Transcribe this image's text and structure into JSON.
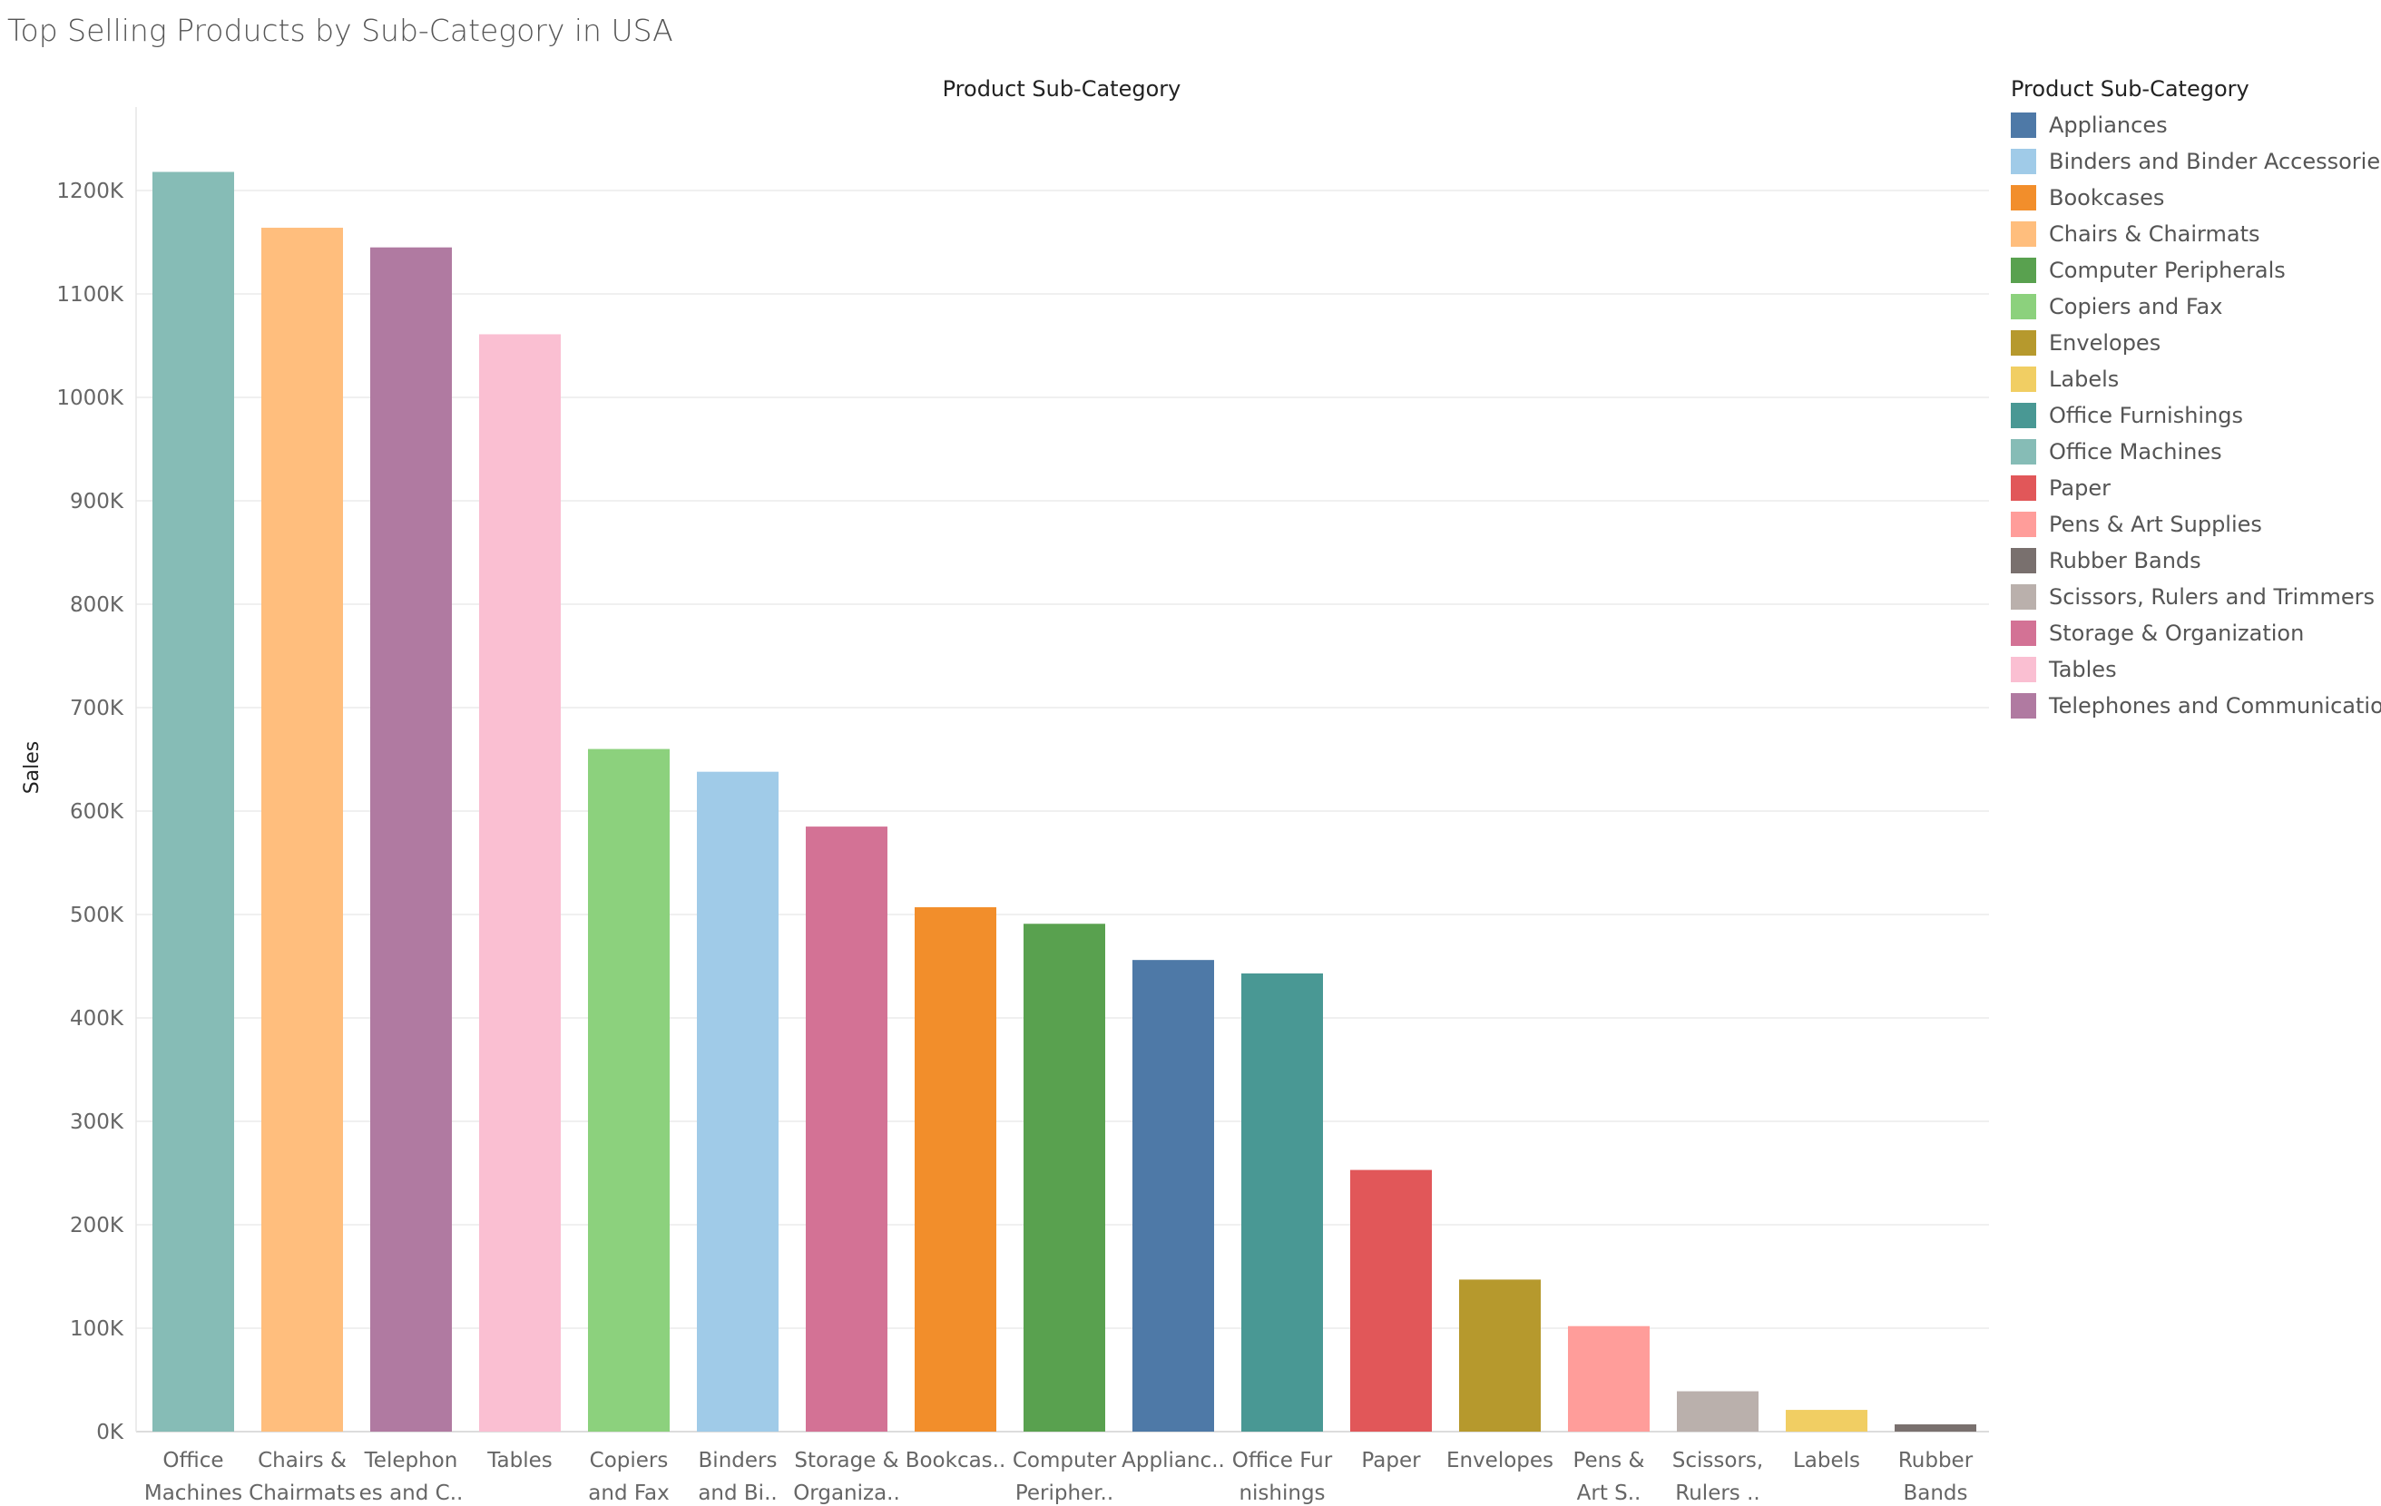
{
  "title": "Top Selling Products by Sub-Category in USA",
  "chart_data": {
    "type": "bar",
    "column_header": "Product Sub-Category",
    "ylabel": "Sales",
    "ylim": [
      0,
      1250000
    ],
    "yticks": [
      {
        "value": 0,
        "label": "0K"
      },
      {
        "value": 100000,
        "label": "100K"
      },
      {
        "value": 200000,
        "label": "200K"
      },
      {
        "value": 300000,
        "label": "300K"
      },
      {
        "value": 400000,
        "label": "400K"
      },
      {
        "value": 500000,
        "label": "500K"
      },
      {
        "value": 600000,
        "label": "600K"
      },
      {
        "value": 700000,
        "label": "700K"
      },
      {
        "value": 800000,
        "label": "800K"
      },
      {
        "value": 900000,
        "label": "900K"
      },
      {
        "value": 1000000,
        "label": "1000K"
      },
      {
        "value": 1100000,
        "label": "1100K"
      },
      {
        "value": 1200000,
        "label": "1200K"
      }
    ],
    "grid": true,
    "legend_position": "right",
    "bars": [
      {
        "category": "Office Machines",
        "label_lines": [
          "Office",
          "Machines"
        ],
        "value": 1218000,
        "color": "#86BCB6"
      },
      {
        "category": "Chairs & Chairmats",
        "label_lines": [
          "Chairs &",
          "Chairmats"
        ],
        "value": 1164000,
        "color": "#FFBE7D"
      },
      {
        "category": "Telephones and Communication",
        "label_lines": [
          "Telephon",
          "es and C.."
        ],
        "value": 1145000,
        "color": "#B07AA1"
      },
      {
        "category": "Tables",
        "label_lines": [
          "Tables"
        ],
        "value": 1061000,
        "color": "#FABFD2"
      },
      {
        "category": "Copiers and Fax",
        "label_lines": [
          "Copiers",
          "and Fax"
        ],
        "value": 660000,
        "color": "#8CD17D"
      },
      {
        "category": "Binders and Binder Accessories",
        "label_lines": [
          "Binders",
          "and Bi.."
        ],
        "value": 638000,
        "color": "#A0CBE8"
      },
      {
        "category": "Storage & Organization",
        "label_lines": [
          "Storage &",
          "Organiza.."
        ],
        "value": 585000,
        "color": "#D37295"
      },
      {
        "category": "Bookcases",
        "label_lines": [
          "Bookcas.."
        ],
        "value": 507000,
        "color": "#F28E2B"
      },
      {
        "category": "Computer Peripherals",
        "label_lines": [
          "Computer",
          "Peripher.."
        ],
        "value": 491000,
        "color": "#59A14F"
      },
      {
        "category": "Appliances",
        "label_lines": [
          "Applianc.."
        ],
        "value": 456000,
        "color": "#4E79A7"
      },
      {
        "category": "Office Furnishings",
        "label_lines": [
          "Office Fur",
          "nishings"
        ],
        "value": 443000,
        "color": "#499894"
      },
      {
        "category": "Paper",
        "label_lines": [
          "Paper"
        ],
        "value": 253000,
        "color": "#E15759"
      },
      {
        "category": "Envelopes",
        "label_lines": [
          "Envelopes"
        ],
        "value": 147000,
        "color": "#B6992D"
      },
      {
        "category": "Pens & Art Supplies",
        "label_lines": [
          "Pens &",
          "Art S.."
        ],
        "value": 102000,
        "color": "#FF9D9A"
      },
      {
        "category": "Scissors, Rulers and Trimmers",
        "label_lines": [
          "Scissors,",
          "Rulers .."
        ],
        "value": 39000,
        "color": "#BAB0AC"
      },
      {
        "category": "Labels",
        "label_lines": [
          "Labels"
        ],
        "value": 21000,
        "color": "#F1CE63"
      },
      {
        "category": "Rubber Bands",
        "label_lines": [
          "Rubber",
          "Bands"
        ],
        "value": 7000,
        "color": "#79706E"
      }
    ]
  },
  "legend": {
    "title": "Product Sub-Category",
    "items": [
      {
        "label": "Appliances",
        "color": "#4E79A7"
      },
      {
        "label": "Binders and Binder Accessories",
        "color": "#A0CBE8"
      },
      {
        "label": "Bookcases",
        "color": "#F28E2B"
      },
      {
        "label": "Chairs & Chairmats",
        "color": "#FFBE7D"
      },
      {
        "label": "Computer Peripherals",
        "color": "#59A14F"
      },
      {
        "label": "Copiers and Fax",
        "color": "#8CD17D"
      },
      {
        "label": "Envelopes",
        "color": "#B6992D"
      },
      {
        "label": "Labels",
        "color": "#F1CE63"
      },
      {
        "label": "Office Furnishings",
        "color": "#499894"
      },
      {
        "label": "Office Machines",
        "color": "#86BCB6"
      },
      {
        "label": "Paper",
        "color": "#E15759"
      },
      {
        "label": "Pens & Art Supplies",
        "color": "#FF9D9A"
      },
      {
        "label": "Rubber Bands",
        "color": "#79706E"
      },
      {
        "label": "Scissors, Rulers and Trimmers",
        "color": "#BAB0AC"
      },
      {
        "label": "Storage & Organization",
        "color": "#D37295"
      },
      {
        "label": "Tables",
        "color": "#FABFD2"
      },
      {
        "label": "Telephones and Communication",
        "color": "#B07AA1"
      }
    ]
  }
}
